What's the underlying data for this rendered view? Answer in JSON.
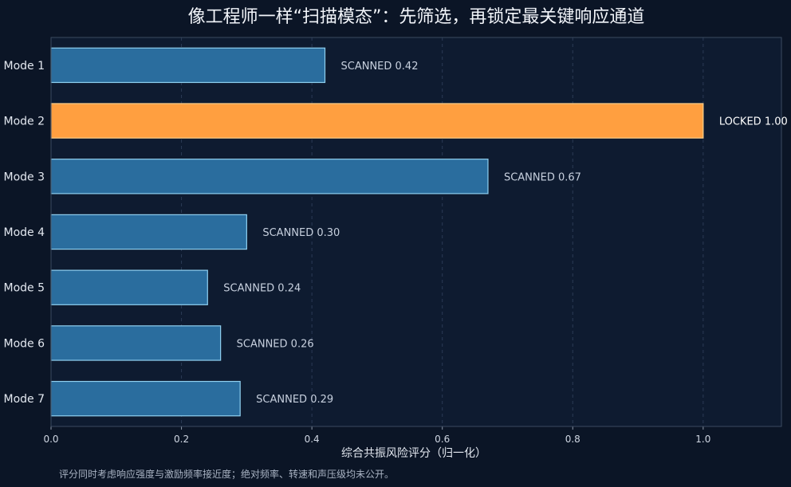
{
  "chart_data": {
    "type": "bar",
    "orientation": "horizontal",
    "title": "像工程师一样“扫描模态”：先筛选，再锁定最关键响应通道",
    "xlabel": "综合共振风险评分（归一化）",
    "ylabel": "",
    "categories": [
      "Mode 1",
      "Mode 2",
      "Mode 3",
      "Mode 4",
      "Mode 5",
      "Mode 6",
      "Mode 7"
    ],
    "values": [
      0.42,
      1.0,
      0.67,
      0.3,
      0.24,
      0.26,
      0.29
    ],
    "value_labels": [
      "SCANNED  0.42",
      "LOCKED  1.00",
      "SCANNED  0.67",
      "SCANNED  0.30",
      "SCANNED  0.24",
      "SCANNED  0.26",
      "SCANNED  0.29"
    ],
    "status": [
      "SCANNED",
      "LOCKED",
      "SCANNED",
      "SCANNED",
      "SCANNED",
      "SCANNED",
      "SCANNED"
    ],
    "xlim": [
      0,
      1.12
    ],
    "xticks": [
      0.0,
      0.2,
      0.4,
      0.6,
      0.8,
      1.0
    ],
    "xtick_labels": [
      "0.0",
      "0.2",
      "0.4",
      "0.6",
      "0.8",
      "1.0"
    ],
    "grid": "vertical dashed",
    "legend": "none",
    "footnote": "评分同时考虑响应强度与激励频率接近度；绝对频率、转速和声压级均未公开。",
    "colors": {
      "background": "#0b1526",
      "plot_background": "#0e1b30",
      "scanned_fill": "#2a6d9e",
      "scanned_edge": "#8fd0f0",
      "locked_fill": "#ff9f40",
      "locked_edge": "#ffd08a",
      "frame": "#3b4a60",
      "grid": "#2a3a55"
    }
  }
}
